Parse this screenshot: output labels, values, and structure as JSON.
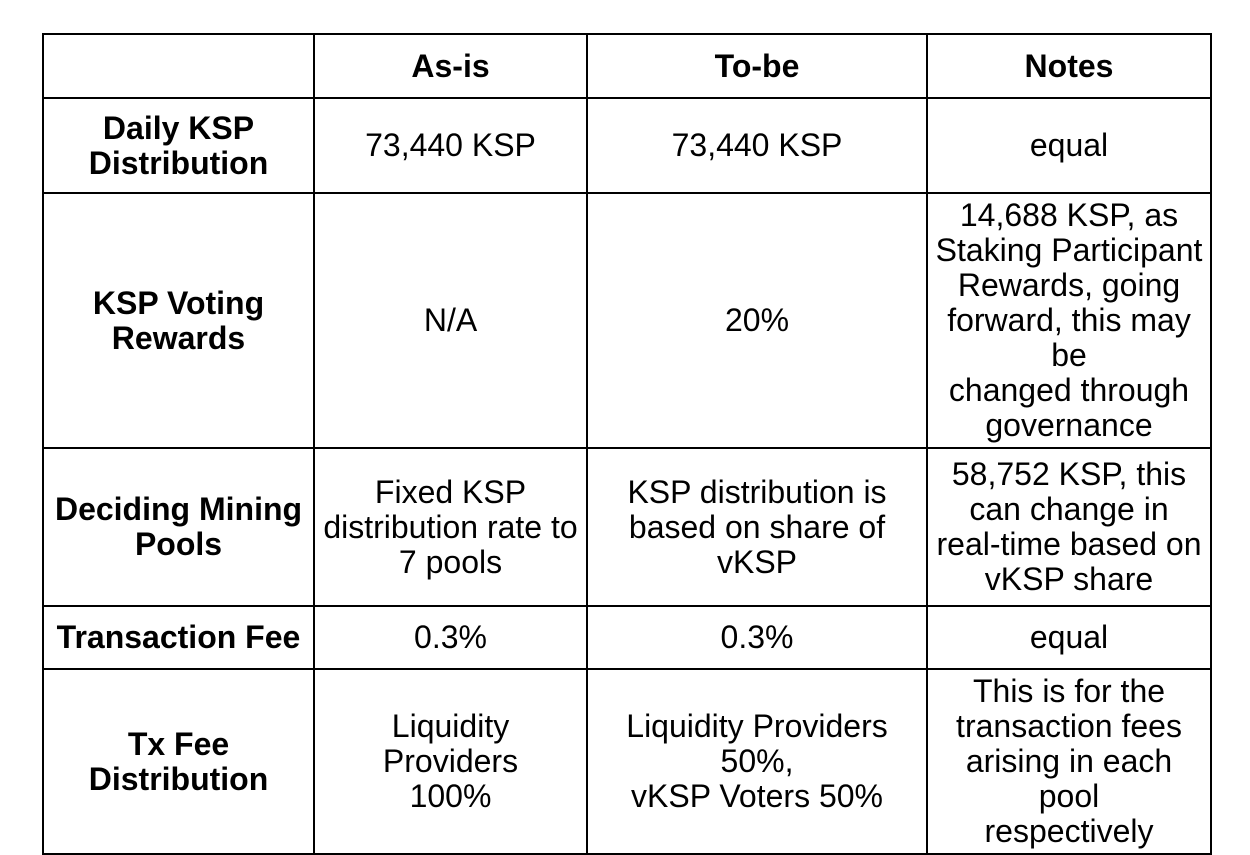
{
  "table": {
    "style": {
      "border_color": "#000000",
      "background_color": "#ffffff",
      "text_color": "#000000"
    },
    "header": {
      "corner": "",
      "columns": [
        "As-is",
        "To-be",
        "Notes"
      ]
    },
    "rows": [
      {
        "label": "Daily KSP\nDistribution",
        "as_is": "73,440 KSP",
        "to_be": "73,440 KSP",
        "notes": "equal"
      },
      {
        "label": "KSP Voting\nRewards",
        "as_is": "N/A",
        "to_be": "20%",
        "notes": "14,688 KSP, as\nStaking Participant\nRewards, going\nforward, this may be\nchanged through\ngovernance"
      },
      {
        "label": "Deciding Mining\nPools",
        "as_is": "Fixed KSP\ndistribution rate to\n7 pools",
        "to_be": "KSP distribution is\nbased on share of\nvKSP",
        "notes": "58,752 KSP, this\ncan change in\nreal-time based on\nvKSP share"
      },
      {
        "label": "Transaction Fee",
        "as_is": "0.3%",
        "to_be": "0.3%",
        "notes": "equal"
      },
      {
        "label": "Tx Fee\nDistribution",
        "as_is": "Liquidity Providers\n100%",
        "to_be": "Liquidity Providers 50%,\nvKSP Voters 50%",
        "notes": "This is for the\ntransaction fees\narising in each pool\nrespectively"
      }
    ]
  }
}
